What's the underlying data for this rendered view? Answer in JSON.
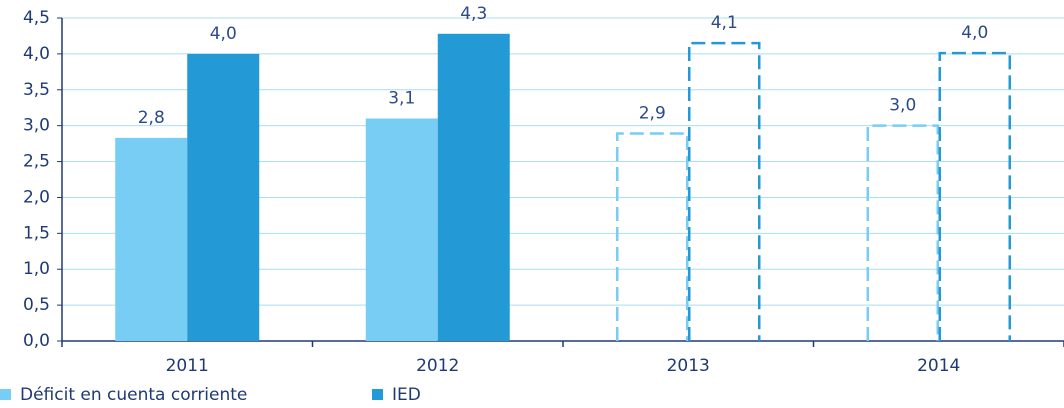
{
  "chart_data": {
    "type": "bar",
    "categories": [
      "2011",
      "2012",
      "2013",
      "2014"
    ],
    "series": [
      {
        "name": "Déficit en cuenta corriente",
        "color": "#77cdf3",
        "values": [
          2.83,
          3.1,
          2.89,
          3.0
        ],
        "value_labels": [
          "2,8",
          "3,1",
          "2,9",
          "3,0"
        ]
      },
      {
        "name": "IED",
        "color": "#2399d6",
        "values": [
          4.0,
          4.28,
          4.15,
          4.01
        ],
        "value_labels": [
          "4,0",
          "4,3",
          "4,1",
          "4,0"
        ]
      }
    ],
    "dashed": [
      false,
      false,
      true,
      true
    ],
    "ylim": [
      0,
      4.5
    ],
    "yticks": [
      {
        "value": 0,
        "label": "0,0"
      },
      {
        "value": 0.5,
        "label": "0,5"
      },
      {
        "value": 1,
        "label": "1,0"
      },
      {
        "value": 1.5,
        "label": "1,5"
      },
      {
        "value": 2,
        "label": "2,0"
      },
      {
        "value": 2.5,
        "label": "2,5"
      },
      {
        "value": 3,
        "label": "3,0"
      },
      {
        "value": 3.5,
        "label": "3,5"
      },
      {
        "value": 4,
        "label": "4,0"
      },
      {
        "value": 4.5,
        "label": "4,5"
      }
    ],
    "grid": true,
    "legend": "bottom-left"
  }
}
